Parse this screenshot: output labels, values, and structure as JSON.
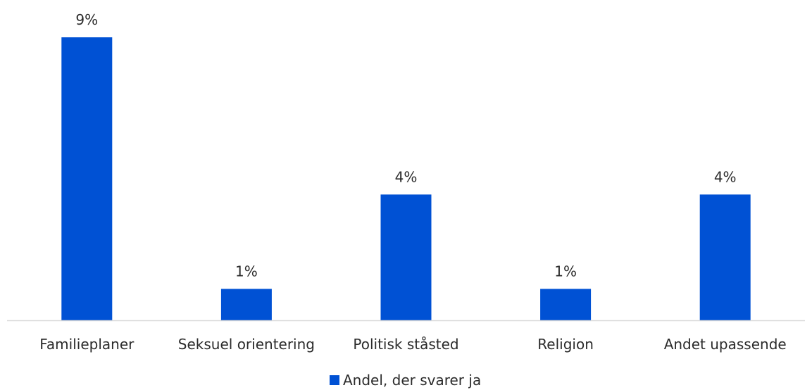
{
  "chart_data": {
    "type": "bar",
    "categories": [
      "Familieplaner",
      "Seksuel orientering",
      "Politisk ståsted",
      "Religion",
      "Andet upassende"
    ],
    "series": [
      {
        "name": "Andel, der svarer ja",
        "values": [
          9,
          1,
          4,
          1,
          4
        ],
        "data_labels": [
          "9%",
          "1%",
          "4%",
          "1%",
          "4%"
        ],
        "color": "#0051d4"
      }
    ],
    "unit": "%",
    "ylim": [
      0,
      9
    ],
    "grid": false,
    "legend_position": "bottom-center",
    "axis_color": "#d9d9d9"
  }
}
